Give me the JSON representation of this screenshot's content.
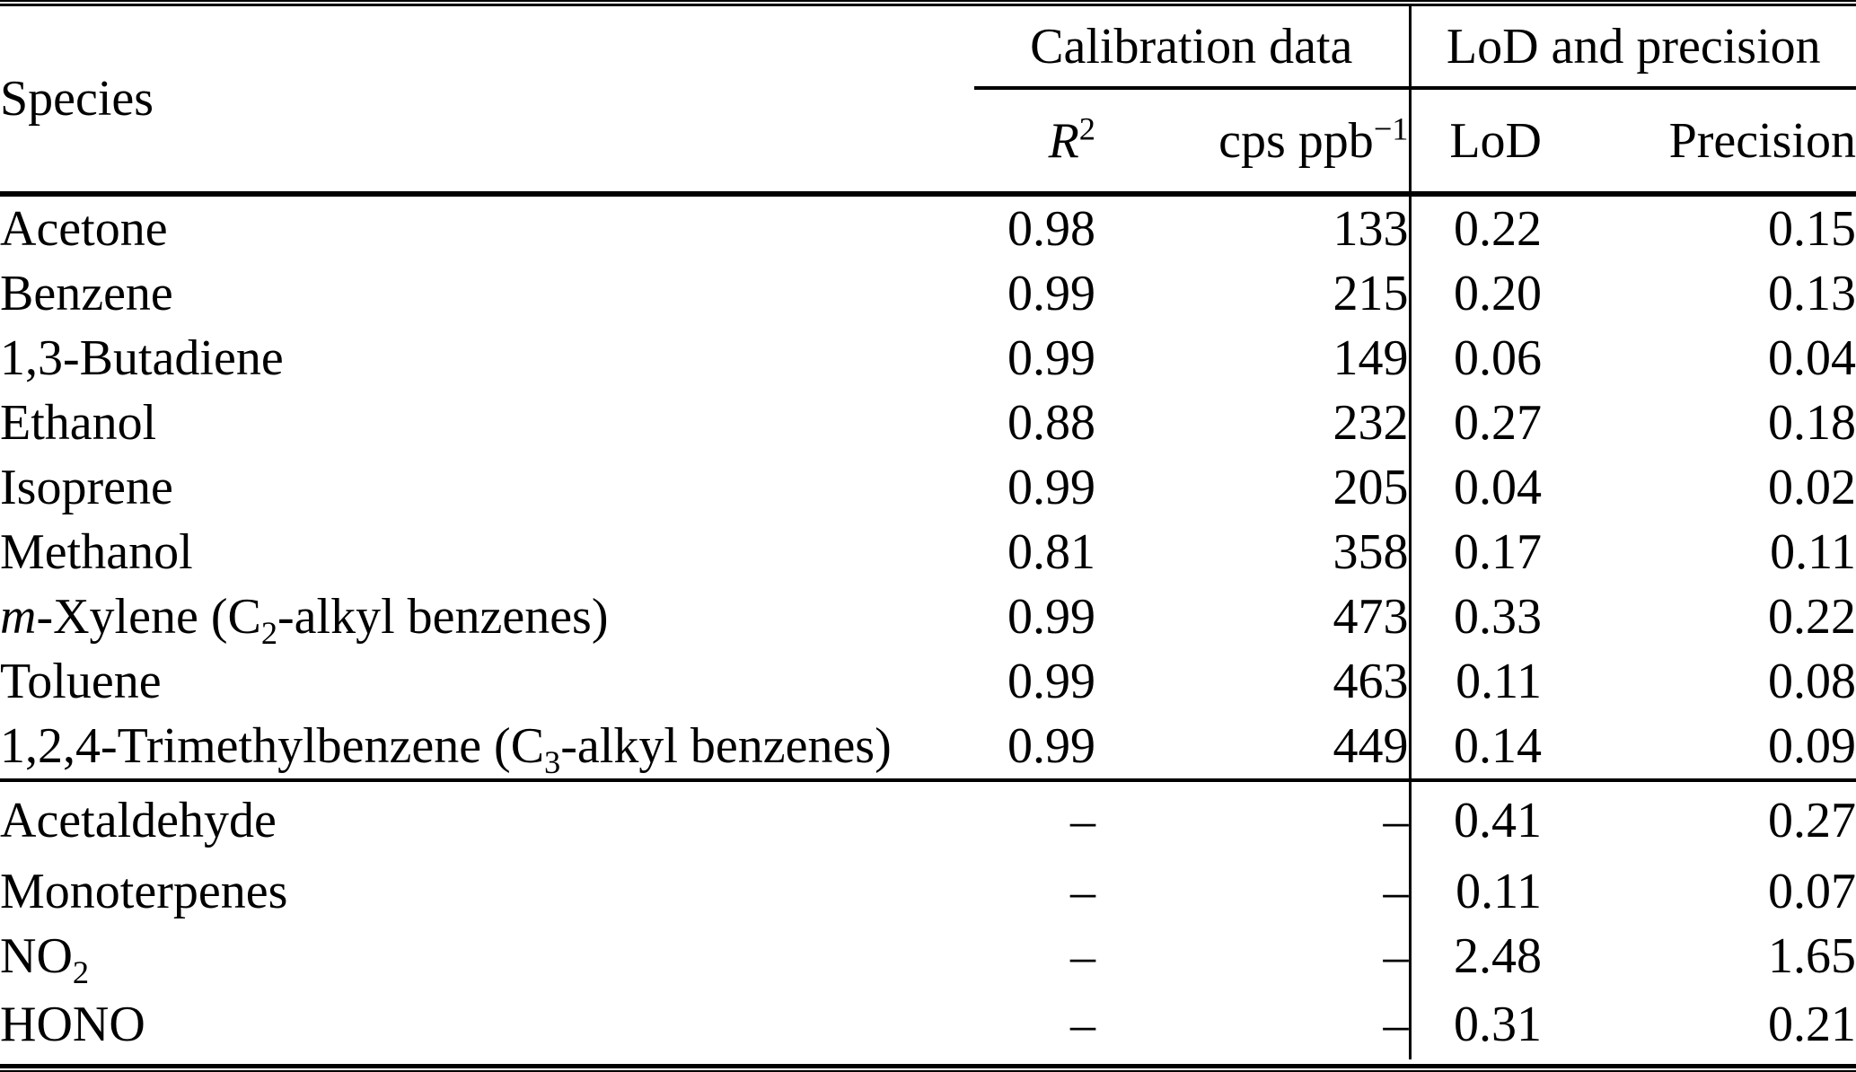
{
  "meta": {
    "background_color": "#ffffff",
    "text_color": "#000000",
    "rule_color": "#000000"
  },
  "header": {
    "species_label": "Species",
    "groups": [
      {
        "label": "Calibration data"
      },
      {
        "label": "LoD and precision"
      }
    ],
    "columns": [
      {
        "id": "r2",
        "segments": [
          {
            "text": "R",
            "style": "italic"
          },
          {
            "text": "2",
            "style": "sup"
          }
        ]
      },
      {
        "id": "cps",
        "segments": [
          {
            "text": "cps ppb"
          },
          {
            "text": "−1",
            "style": "sup"
          }
        ]
      },
      {
        "id": "lod",
        "segments": [
          {
            "text": "LoD"
          }
        ]
      },
      {
        "id": "precision",
        "segments": [
          {
            "text": "Precision"
          }
        ]
      }
    ]
  },
  "sections": [
    {
      "rows": [
        {
          "species": [
            {
              "text": "Acetone"
            }
          ],
          "r2": "0.98",
          "cps": "133",
          "lod": "0.22",
          "precision": "0.15"
        },
        {
          "species": [
            {
              "text": "Benzene"
            }
          ],
          "r2": "0.99",
          "cps": "215",
          "lod": "0.20",
          "precision": "0.13"
        },
        {
          "species": [
            {
              "text": "1,3-Butadiene"
            }
          ],
          "r2": "0.99",
          "cps": "149",
          "lod": "0.06",
          "precision": "0.04"
        },
        {
          "species": [
            {
              "text": "Ethanol"
            }
          ],
          "r2": "0.88",
          "cps": "232",
          "lod": "0.27",
          "precision": "0.18"
        },
        {
          "species": [
            {
              "text": "Isoprene"
            }
          ],
          "r2": "0.99",
          "cps": "205",
          "lod": "0.04",
          "precision": "0.02"
        },
        {
          "species": [
            {
              "text": "Methanol"
            }
          ],
          "r2": "0.81",
          "cps": "358",
          "lod": "0.17",
          "precision": "0.11"
        },
        {
          "species": [
            {
              "text": "m",
              "style": "italic"
            },
            {
              "text": "-Xylene (C"
            },
            {
              "text": "2",
              "style": "sub"
            },
            {
              "text": "-alkyl benzenes)"
            }
          ],
          "r2": "0.99",
          "cps": "473",
          "lod": "0.33",
          "precision": "0.22"
        },
        {
          "species": [
            {
              "text": "Toluene"
            }
          ],
          "r2": "0.99",
          "cps": "463",
          "lod": "0.11",
          "precision": "0.08"
        },
        {
          "species": [
            {
              "text": "1,2,4-Trimethylbenzene (C"
            },
            {
              "text": "3",
              "style": "sub"
            },
            {
              "text": "-alkyl benzenes)"
            }
          ],
          "r2": "0.99",
          "cps": "449",
          "lod": "0.14",
          "precision": "0.09"
        }
      ]
    },
    {
      "rows": [
        {
          "species": [
            {
              "text": "Acetaldehyde"
            }
          ],
          "r2": "–",
          "cps": "–",
          "lod": "0.41",
          "precision": "0.27"
        },
        {
          "species": [
            {
              "text": "Monoterpenes"
            }
          ],
          "r2": "–",
          "cps": "–",
          "lod": "0.11",
          "precision": "0.07"
        },
        {
          "species": [
            {
              "text": "NO"
            },
            {
              "text": "2",
              "style": "sub"
            }
          ],
          "r2": "–",
          "cps": "–",
          "lod": "2.48",
          "precision": "1.65"
        },
        {
          "species": [
            {
              "text": "HONO"
            }
          ],
          "r2": "–",
          "cps": "–",
          "lod": "0.31",
          "precision": "0.21"
        }
      ]
    }
  ]
}
